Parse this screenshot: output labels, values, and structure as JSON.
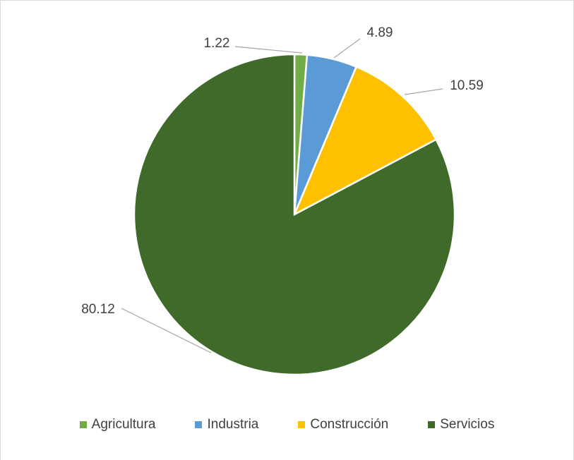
{
  "chart_data": {
    "type": "pie",
    "title": "",
    "series": [
      {
        "name": "Agricultura",
        "value": 1.22,
        "color": "#70AD47",
        "label": "1.22"
      },
      {
        "name": "Industria",
        "value": 4.89,
        "color": "#5B9BD5",
        "label": "4.89"
      },
      {
        "name": "Construcción",
        "value": 10.59,
        "color": "#FFC000",
        "label": "10.59"
      },
      {
        "name": "Servicios",
        "value": 80.12,
        "color": "#3F6A2A",
        "label": "80.12"
      }
    ],
    "legend_position": "bottom",
    "start_angle": "12 o'clock, clockwise"
  }
}
